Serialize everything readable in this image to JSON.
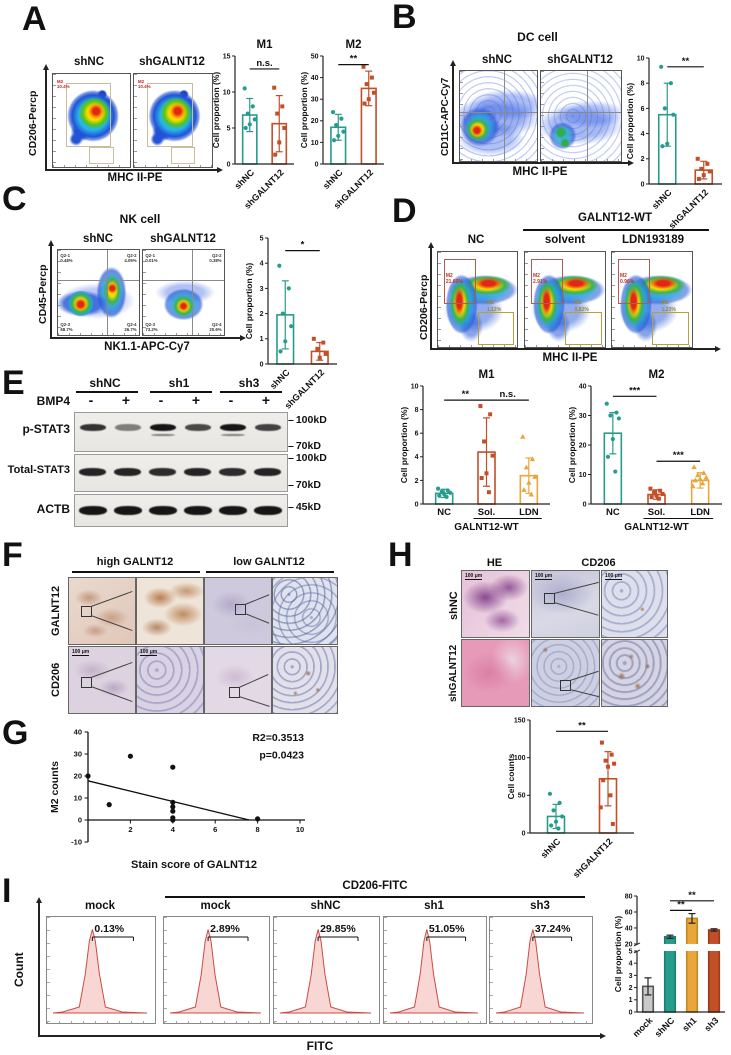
{
  "colors": {
    "teal": "#279c8c",
    "brick": "#c14f28",
    "amber": "#e9a63a",
    "gray": "#c9c9c9"
  },
  "panels": {
    "A": {
      "label": "A",
      "flow": {
        "ylabel": "CD206-Percp",
        "xlabel": "MHC II-PE",
        "plots": [
          {
            "title": "shNC"
          },
          {
            "title": "shGALNT12"
          }
        ],
        "gate": {
          "n": "M2",
          "v": "10.4%"
        }
      },
      "charts": [
        {
          "title": "M1",
          "ylabel": "Cell proportion (%)",
          "ymax": 15,
          "yticks": [
            0,
            5,
            10,
            15
          ],
          "bars": [
            {
              "label": "shNC",
              "value": 6.8,
              "err": 2.3,
              "color": "#279c8c",
              "marker": "circle",
              "points": [
                10.5,
                8,
                7,
                6.2,
                5.5,
                5
              ]
            },
            {
              "label": "shGALNT12",
              "value": 5.6,
              "err": 3.9,
              "color": "#c14f28",
              "marker": "square",
              "points": [
                10.6,
                8,
                7,
                5,
                3,
                1.3
              ]
            }
          ],
          "sigs": [
            {
              "a": 0,
              "b": 1,
              "text": "n.s.",
              "val": 13.2
            }
          ]
        },
        {
          "title": "M2",
          "ylabel": "Cell proportion (%)",
          "ymax": 50,
          "yticks": [
            0,
            10,
            20,
            30,
            40,
            50
          ],
          "bars": [
            {
              "label": "shNC",
              "value": 17,
              "err": 6,
              "color": "#279c8c",
              "marker": "circle",
              "points": [
                24,
                21,
                18,
                15,
                13,
                11
              ]
            },
            {
              "label": "shGALNT12",
              "value": 35,
              "err": 8,
              "color": "#c14f28",
              "marker": "square",
              "points": [
                45,
                40,
                37,
                33,
                30,
                28
              ]
            }
          ],
          "sigs": [
            {
              "a": 0,
              "b": 1,
              "text": "**",
              "val": 46
            }
          ]
        }
      ]
    },
    "B": {
      "label": "B",
      "title": "DC cell",
      "flow": {
        "ylabel": "CD11C-APC-Cy7",
        "xlabel": "MHC II-PE",
        "plots": [
          {
            "title": "shNC"
          },
          {
            "title": "shGALNT12"
          }
        ]
      },
      "chart": {
        "ylabel": "Cell proportion (%)",
        "ymax": 10,
        "yticks": [
          0,
          2,
          4,
          6,
          8,
          10
        ],
        "bars": [
          {
            "label": "shNC",
            "value": 5.5,
            "err": 2.5,
            "color": "#279c8c",
            "marker": "circle",
            "points": [
              9.3,
              8,
              6,
              5.5,
              3.2,
              3
            ]
          },
          {
            "label": "shGALNT12",
            "value": 1.1,
            "err": 0.7,
            "color": "#c14f28",
            "marker": "square",
            "points": [
              2,
              1.6,
              1.2,
              1,
              0.7,
              0.4
            ]
          }
        ],
        "sigs": [
          {
            "a": 0,
            "b": 1,
            "text": "**",
            "val": 9.3
          }
        ]
      }
    },
    "C": {
      "label": "C",
      "title": "NK cell",
      "flow": {
        "ylabel": "CD45-Percp",
        "xlabel": "NK1.1-APC-Cy7",
        "plots": [
          {
            "title": "shNC",
            "quads": [
              {
                "n": "Q2-1",
                "v": "0.48%"
              },
              {
                "n": "Q2-2",
                "v": "4.05%"
              },
              {
                "n": "Q2-3",
                "v": "68.7%"
              },
              {
                "n": "Q2-4",
                "v": "26.7%"
              }
            ]
          },
          {
            "title": "shGALNT12",
            "quads": [
              {
                "n": "Q2-1",
                "v": "0.01%"
              },
              {
                "n": "Q2-2",
                "v": "0.38%"
              },
              {
                "n": "Q2-3",
                "v": "73.2%"
              },
              {
                "n": "Q2-4",
                "v": "20.6%"
              }
            ]
          }
        ]
      },
      "chart": {
        "ylabel": "Cell proportion (%)",
        "ymax": 5,
        "yticks": [
          0,
          1,
          2,
          3,
          4,
          5
        ],
        "bars": [
          {
            "label": "shNC",
            "value": 1.95,
            "err": 1.35,
            "color": "#279c8c",
            "marker": "circle",
            "points": [
              3.9,
              3,
              2,
              1.5,
              0.9,
              0.5
            ]
          },
          {
            "label": "shGALNT12",
            "value": 0.5,
            "err": 0.35,
            "color": "#c14f28",
            "marker": "square",
            "points": [
              1,
              0.85,
              0.6,
              0.4,
              0.25
            ]
          }
        ],
        "sigs": [
          {
            "a": 0,
            "b": 1,
            "text": "*",
            "val": 4.5
          }
        ]
      }
    },
    "D": {
      "label": "D",
      "group_title": "GALNT12-WT",
      "flow": {
        "ylabel": "CD206-Percp",
        "xlabel": "MHC II-PE",
        "plots": [
          {
            "title": "NC",
            "m2": {
              "n": "M2",
              "v": "21.60%"
            },
            "m1": {
              "n": "M1",
              "v": "1.12%"
            }
          },
          {
            "title": "solvent",
            "m2": {
              "n": "M2",
              "v": "2.91%"
            },
            "m1": {
              "n": "M1",
              "v": "5.82%"
            }
          },
          {
            "title": "LDN193189",
            "m2": {
              "n": "M2",
              "v": "0.96%"
            },
            "m1": {
              "n": "M1",
              "v": "1.23%"
            }
          }
        ]
      },
      "charts": [
        {
          "title": "M1",
          "ylabel": "Cell proportion (%)",
          "ymax": 10,
          "yticks": [
            0,
            2,
            4,
            6,
            8,
            10
          ],
          "bars": [
            {
              "label": "NC",
              "value": 0.9,
              "err": 0.35,
              "color": "#279c8c",
              "marker": "circle",
              "points": [
                1.3,
                1.15,
                1.05,
                0.95,
                0.85,
                0.7,
                0.6
              ]
            },
            {
              "label": "Sol.",
              "value": 4.4,
              "err": 2.9,
              "color": "#c14f28",
              "marker": "square",
              "points": [
                8.3,
                7.6,
                5.3,
                4.1,
                2.6,
                2.2,
                1.0
              ]
            },
            {
              "label": "LDN",
              "value": 2.4,
              "err": 1.5,
              "color": "#e9a63a",
              "marker": "triangle",
              "points": [
                5.7,
                3.8,
                3.1,
                2.3,
                1.8,
                1.2,
                0.8
              ]
            }
          ],
          "sigs": [
            {
              "a": 0,
              "b": 1,
              "text": "**",
              "val": 8.8
            },
            {
              "a": 1,
              "b": 2,
              "text": "n.s.",
              "val": 8.8
            }
          ],
          "underline": {
            "a": 1,
            "b": 2
          },
          "sublabel": "GALNT12-WT"
        },
        {
          "title": "M2",
          "ylabel": "Cell proportion (%)",
          "ymax": 40,
          "yticks": [
            0,
            10,
            20,
            30,
            40
          ],
          "bars": [
            {
              "label": "NC",
              "value": 24,
              "err": 7,
              "color": "#279c8c",
              "marker": "circle",
              "points": [
                34,
                31,
                30,
                29,
                22,
                16,
                11
              ]
            },
            {
              "label": "Sol.",
              "value": 3.2,
              "err": 1.6,
              "color": "#c14f28",
              "marker": "square",
              "points": [
                5.2,
                4.5,
                4,
                3.4,
                2.8,
                2.3,
                1.8
              ]
            },
            {
              "label": "LDN",
              "value": 8,
              "err": 2.6,
              "color": "#e9a63a",
              "marker": "triangle",
              "points": [
                12.5,
                10.5,
                9.8,
                9,
                8.5,
                8,
                7,
                6
              ]
            }
          ],
          "sigs": [
            {
              "a": 0,
              "b": 1,
              "text": "***",
              "val": 36.5
            },
            {
              "a": 1,
              "b": 2,
              "text": "***",
              "val": 14.5
            }
          ],
          "underline": {
            "a": 1,
            "b": 2
          },
          "sublabel": "GALNT12-WT"
        }
      ]
    },
    "E": {
      "label": "E",
      "bmp4_label": "BMP4",
      "groups": [
        "shNC",
        "sh1",
        "sh3"
      ],
      "bmp4_signs": [
        "-",
        "+",
        "-",
        "+",
        "-",
        "+"
      ],
      "rows": [
        {
          "label": "p-STAT3",
          "lanes": [
            0.8,
            0.3,
            1,
            0.65,
            1,
            0.7
          ],
          "subs": [
            2,
            4
          ]
        },
        {
          "label": "Total-STAT3",
          "lanes": [
            0.9,
            0.9,
            0.85,
            0.9,
            0.85,
            0.9
          ],
          "subs": []
        },
        {
          "label": "ACTB",
          "lanes": [
            1,
            1,
            1,
            1,
            1,
            1
          ],
          "subs": []
        }
      ],
      "markers": [
        "100kD",
        "70kD",
        "100kD",
        "70kD",
        "45kD"
      ]
    },
    "F": {
      "label": "F",
      "col_headers": [
        "high GALNT12",
        "low GALNT12"
      ],
      "row_labels": [
        "GALNT12",
        "CD206"
      ],
      "scale": "100 μm"
    },
    "G": {
      "label": "G",
      "chart": {
        "type": "scatter",
        "ylabel": "M2 counts",
        "xlabel": "Stain score of GALNT12",
        "r2": "R2=0.3513",
        "p": "p=0.0423",
        "yticks": [
          -10,
          0,
          10,
          20,
          30,
          40
        ],
        "xticks": [
          2,
          4,
          6,
          8,
          10
        ],
        "points": [
          [
            0,
            20
          ],
          [
            1,
            7
          ],
          [
            2,
            29
          ],
          [
            4,
            24
          ],
          [
            4,
            8
          ],
          [
            4,
            6
          ],
          [
            4,
            4
          ],
          [
            4,
            1
          ],
          [
            4,
            0
          ],
          [
            8,
            0.5
          ]
        ],
        "line": [
          [
            0,
            17.8
          ],
          [
            7.6,
            0
          ]
        ]
      }
    },
    "H": {
      "label": "H",
      "col_headers": [
        "HE",
        "CD206"
      ],
      "row_labels": [
        "shNC",
        "shGALNT12"
      ],
      "scale": "100 μm",
      "chart": {
        "ylabel": "Cell counts",
        "ymax": 150,
        "yticks": [
          0,
          50,
          100,
          150
        ],
        "bars": [
          {
            "label": "shNC",
            "value": 22,
            "err": 16,
            "color": "#279c8c",
            "marker": "circle",
            "points": [
              52,
              40,
              30,
              22,
              15,
              10,
              6
            ]
          },
          {
            "label": "shGALNT12",
            "value": 72,
            "err": 36,
            "color": "#c14f28",
            "marker": "square",
            "points": [
              120,
              104,
              96,
              92,
              88,
              70,
              50,
              34,
              12
            ]
          }
        ],
        "sigs": [
          {
            "a": 0,
            "b": 1,
            "text": "**",
            "val": 135
          }
        ]
      }
    },
    "I": {
      "label": "I",
      "bracket_title": "CD206-FITC",
      "ylabel": "Count",
      "xlabel": "FITC",
      "hists": [
        {
          "title": "mock",
          "pct": "0.13%"
        },
        {
          "title": "mock",
          "pct": "2.89%"
        },
        {
          "title": "shNC",
          "pct": "29.85%"
        },
        {
          "title": "sh1",
          "pct": "51.05%"
        },
        {
          "title": "sh3",
          "pct": "37.24%"
        }
      ],
      "chart": {
        "ylabel": "Cell proportion (%)",
        "segments": [
          {
            "min": 0,
            "max": 5,
            "ticks": [
              0,
              1,
              2,
              3,
              4,
              5
            ],
            "frac": 0.56
          },
          {
            "min": 20,
            "max": 80,
            "ticks": [
              20,
              40,
              60,
              80
            ],
            "frac": 0.44
          }
        ],
        "bars": [
          {
            "label": "mock",
            "value": 2.1,
            "err": 0.7,
            "color": "#555555",
            "fill": "#c9c9c9"
          },
          {
            "label": "shNC",
            "value": 29,
            "err": 2,
            "color": "#1d7d70",
            "fill": "#279c8c"
          },
          {
            "label": "sh1",
            "value": 52,
            "err": 6,
            "color": "#c08a20",
            "fill": "#e9a63a"
          },
          {
            "label": "sh3",
            "value": 37.5,
            "err": 1.5,
            "color": "#9c3c16",
            "fill": "#c14f28"
          }
        ],
        "sigs": [
          {
            "a": 1,
            "b": 2,
            "text": "**",
            "val": 62
          },
          {
            "a": 1,
            "b": 3,
            "text": "**",
            "val": 74
          }
        ]
      }
    }
  }
}
